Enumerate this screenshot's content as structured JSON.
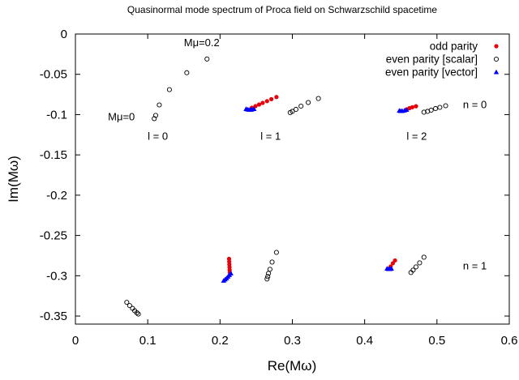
{
  "chart_data": {
    "type": "scatter",
    "title": "Quasinormal mode spectrum of Proca field on Schwarzschild spacetime",
    "xlabel": "Re(Mω)",
    "ylabel": "Im(Mω)",
    "xlim": [
      0,
      0.6
    ],
    "ylim": [
      -0.36,
      0
    ],
    "xticks": [
      0,
      0.1,
      0.2,
      0.3,
      0.4,
      0.5,
      0.6
    ],
    "xtick_labels": [
      "0",
      "0.1",
      "0.2",
      "0.3",
      "0.4",
      "0.5",
      "0.6"
    ],
    "yticks": [
      0,
      -0.05,
      -0.1,
      -0.15,
      -0.2,
      -0.25,
      -0.3,
      -0.35
    ],
    "ytick_labels": [
      "0",
      "-0.05",
      "-0.1",
      "-0.15",
      "-0.2",
      "-0.25",
      "-0.3",
      "-0.35"
    ],
    "grid": false,
    "legend_position": "top-right",
    "series": [
      {
        "name": "odd parity",
        "marker": "filled-circle",
        "color": "#e8000b",
        "x": [
          0.244,
          0.249,
          0.254,
          0.259,
          0.265,
          0.271,
          0.278,
          0.458,
          0.462,
          0.466,
          0.471,
          0.2125,
          0.2127,
          0.2129,
          0.2131,
          0.2133,
          0.2135,
          0.436,
          0.439,
          0.442
        ],
        "y": [
          -0.0915,
          -0.0895,
          -0.0875,
          -0.0855,
          -0.0833,
          -0.0808,
          -0.0782,
          -0.0935,
          -0.092,
          -0.0908,
          -0.0896,
          -0.279,
          -0.2825,
          -0.286,
          -0.2895,
          -0.293,
          -0.296,
          -0.2885,
          -0.2845,
          -0.281
        ]
      },
      {
        "name": "even parity [scalar]",
        "marker": "open-circle",
        "color": "#000000",
        "x": [
          0.109,
          0.111,
          0.116,
          0.13,
          0.154,
          0.182,
          0.297,
          0.3,
          0.305,
          0.312,
          0.322,
          0.336,
          0.482,
          0.487,
          0.492,
          0.498,
          0.504,
          0.512,
          0.071,
          0.075,
          0.079,
          0.082,
          0.085,
          0.087,
          0.265,
          0.266,
          0.267,
          0.269,
          0.272,
          0.278,
          0.464,
          0.467,
          0.471,
          0.476,
          0.482
        ],
        "y": [
          -0.105,
          -0.101,
          -0.088,
          -0.069,
          -0.048,
          -0.031,
          -0.0975,
          -0.096,
          -0.0935,
          -0.0895,
          -0.085,
          -0.08,
          -0.097,
          -0.096,
          -0.0945,
          -0.0925,
          -0.091,
          -0.089,
          -0.333,
          -0.337,
          -0.3405,
          -0.3435,
          -0.346,
          -0.3475,
          -0.304,
          -0.301,
          -0.297,
          -0.292,
          -0.283,
          -0.271,
          -0.296,
          -0.293,
          -0.289,
          -0.284,
          -0.277
        ]
      },
      {
        "name": "even parity [vector]",
        "marker": "filled-triangle",
        "color": "#0000ff",
        "x": [
          0.236,
          0.238,
          0.24,
          0.242,
          0.244,
          0.247,
          0.448,
          0.45,
          0.452,
          0.455,
          0.458,
          0.205,
          0.207,
          0.209,
          0.211,
          0.213,
          0.215,
          0.431,
          0.433,
          0.435,
          0.437
        ],
        "y": [
          -0.093,
          -0.0935,
          -0.0938,
          -0.0938,
          -0.0936,
          -0.093,
          -0.095,
          -0.0955,
          -0.0953,
          -0.0948,
          -0.094,
          -0.306,
          -0.3045,
          -0.303,
          -0.301,
          -0.299,
          -0.297,
          -0.291,
          -0.2915,
          -0.2915,
          -0.291
        ]
      }
    ],
    "annotations": [
      {
        "text": "Mμ=0.2",
        "x": 0.15,
        "y": -0.015
      },
      {
        "text": "Mμ=0",
        "x": 0.045,
        "y": -0.107
      },
      {
        "text": "l = 0",
        "x": 0.1,
        "y": -0.131
      },
      {
        "text": "l = 1",
        "x": 0.256,
        "y": -0.131
      },
      {
        "text": "l = 2",
        "x": 0.458,
        "y": -0.131
      },
      {
        "text": "n = 0",
        "x": 0.536,
        "y": -0.092
      },
      {
        "text": "n = 1",
        "x": 0.536,
        "y": -0.292
      }
    ]
  }
}
